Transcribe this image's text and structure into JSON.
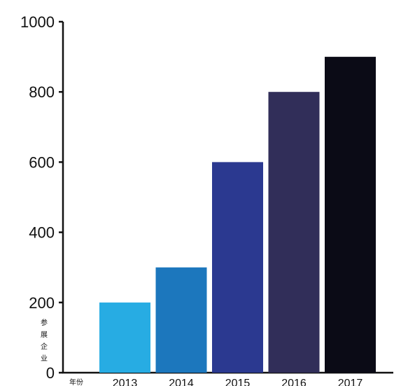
{
  "chart_data": {
    "type": "bar",
    "categories": [
      "2013",
      "2014",
      "2015",
      "2016",
      "2017"
    ],
    "values": [
      200,
      300,
      600,
      800,
      900
    ],
    "colors": [
      "#27ACE3",
      "#1C77BD",
      "#2B3990",
      "#312E59",
      "#0B0B16"
    ],
    "y_ticks": [
      "0",
      "200",
      "400",
      "600",
      "800",
      "1000"
    ],
    "ylim": [
      0,
      1000
    ],
    "ylabel_chars": [
      "参",
      "展",
      "企",
      "业"
    ],
    "xlabel": "年份",
    "grid": false,
    "legend": "none"
  }
}
